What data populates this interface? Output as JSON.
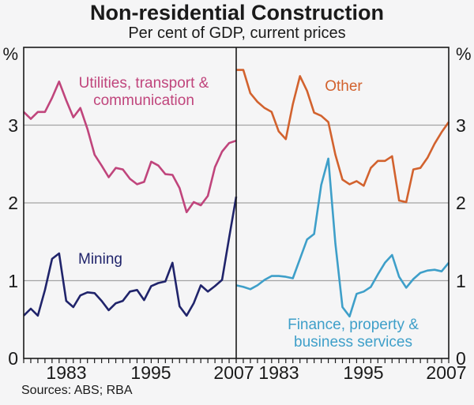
{
  "title": "Non-residential Construction",
  "subtitle": "Per cent of GDP, current prices",
  "source_note": "Sources: ABS; RBA",
  "axes": {
    "unit": "%",
    "ylim": [
      0,
      4
    ],
    "y_ticks": [
      "0",
      "1",
      "2",
      "3"
    ],
    "x_tick_years": [
      "1983",
      "1995",
      "2007"
    ],
    "grid_values": [
      1,
      2,
      3
    ],
    "grid_color": "#a3a3a3",
    "frame_color": "#1a1a1a"
  },
  "chart_data": {
    "type": "line",
    "title": "Non-residential Construction",
    "subtitle": "Per cent of GDP, current prices",
    "ylabel": "%",
    "ylim": [
      0,
      4
    ],
    "gridlines": [
      1,
      2,
      3
    ],
    "legend_position": "inline-labels",
    "x": [
      1977,
      1978,
      1979,
      1980,
      1981,
      1982,
      1983,
      1984,
      1985,
      1986,
      1987,
      1988,
      1989,
      1990,
      1991,
      1992,
      1993,
      1994,
      1995,
      1996,
      1997,
      1998,
      1999,
      2000,
      2001,
      2002,
      2003,
      2004,
      2005,
      2006,
      2007
    ],
    "panels": [
      {
        "name": "left",
        "series": [
          {
            "name": "Utilities, transport & communication",
            "label_lines": [
              "Utilities, transport &",
              "communication"
            ],
            "color": "#c0457c",
            "values": [
              3.17,
              3.08,
              3.17,
              3.17,
              3.35,
              3.56,
              3.32,
              3.1,
              3.22,
              2.95,
              2.62,
              2.48,
              2.33,
              2.45,
              2.43,
              2.31,
              2.24,
              2.27,
              2.53,
              2.48,
              2.37,
              2.36,
              2.19,
              1.88,
              2.01,
              1.97,
              2.09,
              2.46,
              2.66,
              2.77,
              2.8
            ]
          },
          {
            "name": "Mining",
            "label_lines": [
              "Mining"
            ],
            "color": "#20246b",
            "values": [
              0.55,
              0.64,
              0.55,
              0.88,
              1.28,
              1.35,
              0.74,
              0.66,
              0.81,
              0.85,
              0.84,
              0.74,
              0.62,
              0.71,
              0.74,
              0.86,
              0.88,
              0.75,
              0.93,
              0.97,
              0.99,
              1.23,
              0.67,
              0.55,
              0.71,
              0.94,
              0.86,
              0.93,
              1.01,
              1.55,
              2.08
            ]
          }
        ]
      },
      {
        "name": "right",
        "series": [
          {
            "name": "Other",
            "label_lines": [
              "Other"
            ],
            "color": "#d2622e",
            "values": [
              3.71,
              3.71,
              3.41,
              3.3,
              3.22,
              3.17,
              2.92,
              2.82,
              3.27,
              3.63,
              3.44,
              3.16,
              3.12,
              3.04,
              2.62,
              2.3,
              2.24,
              2.28,
              2.22,
              2.45,
              2.54,
              2.54,
              2.6,
              2.03,
              2.01,
              2.43,
              2.45,
              2.58,
              2.76,
              2.91,
              3.04
            ]
          },
          {
            "name": "Finance, property & business services",
            "label_lines": [
              "Finance, property &",
              "business services"
            ],
            "color": "#3e9fc9",
            "values": [
              0.94,
              0.92,
              0.89,
              0.94,
              1.01,
              1.06,
              1.06,
              1.05,
              1.03,
              1.28,
              1.53,
              1.6,
              2.23,
              2.57,
              1.48,
              0.66,
              0.54,
              0.83,
              0.86,
              0.92,
              1.08,
              1.23,
              1.33,
              1.05,
              0.91,
              1.02,
              1.1,
              1.13,
              1.14,
              1.12,
              1.23
            ]
          }
        ]
      }
    ]
  }
}
